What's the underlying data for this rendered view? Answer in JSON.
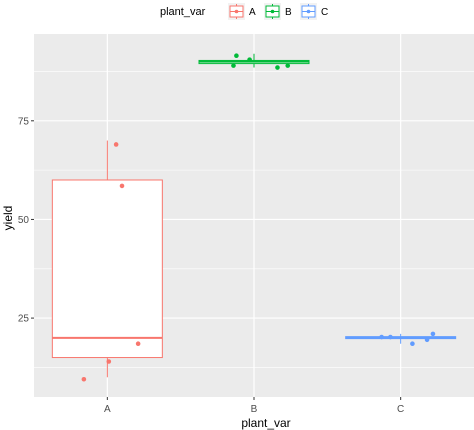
{
  "chart_data": {
    "type": "boxplot",
    "xlabel": "plant_var",
    "ylabel": "yield",
    "categories": [
      "A",
      "B",
      "C"
    ],
    "ylim": [
      5,
      97
    ],
    "yticks": [
      25,
      50,
      75
    ],
    "grid": true,
    "legend": {
      "title": "plant_var",
      "position": "top",
      "entries": [
        "A",
        "B",
        "C"
      ]
    },
    "colors": {
      "A": "#F8766D",
      "B": "#00BA38",
      "C": "#619CFF",
      "panel_background": "#EBEBEB",
      "grid": "#FFFFFF"
    },
    "series": [
      {
        "name": "A",
        "box": {
          "min": 10,
          "q1": 15,
          "median": 20,
          "q3": 60,
          "max": 70
        },
        "points": [
          {
            "y": 9.5,
            "jitter": -0.16
          },
          {
            "y": 14,
            "jitter": 0.01
          },
          {
            "y": 18.5,
            "jitter": 0.21
          },
          {
            "y": 58.5,
            "jitter": 0.1
          },
          {
            "y": 69,
            "jitter": 0.06
          }
        ]
      },
      {
        "name": "B",
        "box": {
          "min": 88.5,
          "q1": 89.5,
          "median": 90,
          "q3": 90.3,
          "max": 92
        },
        "points": [
          {
            "y": 91.5,
            "jitter": -0.12
          },
          {
            "y": 89,
            "jitter": -0.14
          },
          {
            "y": 90.5,
            "jitter": -0.03
          },
          {
            "y": 88.5,
            "jitter": 0.16
          },
          {
            "y": 89,
            "jitter": 0.23
          }
        ]
      },
      {
        "name": "C",
        "box": {
          "min": 18.5,
          "q1": 19.8,
          "median": 20,
          "q3": 20.3,
          "max": 21
        },
        "points": [
          {
            "y": 20.2,
            "jitter": -0.13
          },
          {
            "y": 20.2,
            "jitter": -0.07
          },
          {
            "y": 18.5,
            "jitter": 0.08
          },
          {
            "y": 19.5,
            "jitter": 0.18
          },
          {
            "y": 21,
            "jitter": 0.22
          }
        ]
      }
    ]
  }
}
